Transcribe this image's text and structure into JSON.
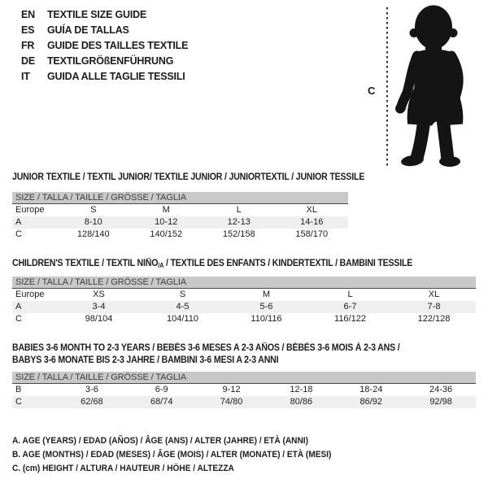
{
  "language_guide": {
    "items": [
      {
        "code": "EN",
        "label": "TEXTILE SIZE GUIDE"
      },
      {
        "code": "ES",
        "label": "GUÍA DE TALLAS"
      },
      {
        "code": "FR",
        "label": "GUIDE DES TAILLES TEXTILE"
      },
      {
        "code": "DE",
        "label": "TEXTILGRÖßENFÜHRUNG"
      },
      {
        "code": "IT",
        "label": "GUIDA ALLE TAGLIE TESSILI"
      }
    ]
  },
  "figure": {
    "icon": "baby-silhouette-icon",
    "measure_label": "C"
  },
  "tables": [
    {
      "title": "JUNIOR TEXTILE / TEXTIL JUNIOR/ TEXTILE JUNIOR / JUNIORTEXTIL / JUNIOR TESSILE",
      "size_header": "SIZE / TALLA / TAILLE / GRÖSSE / TAGLIA",
      "rows": [
        {
          "label": "Europe",
          "values": [
            "S",
            "M",
            "L",
            "XL"
          ],
          "shaded": false
        },
        {
          "label": "A",
          "values": [
            "8-10",
            "10-12",
            "12-13",
            "14-16"
          ],
          "shaded": true
        },
        {
          "label": "C",
          "values": [
            "128/140",
            "140/152",
            "152/158",
            "158/170"
          ],
          "shaded": false
        }
      ]
    },
    {
      "title_parts": {
        "before": "CHILDREN'S TEXTILE / TEXTIL NIÑO",
        "sub": "/A",
        "after": " / TEXTILE DES ENFANTS / KINDERTEXTIL / BAMBINI TESSILE"
      },
      "size_header": "SIZE / TALLA / TAILLE / GRÖSSE / TAGLIA",
      "rows": [
        {
          "label": "Europe",
          "values": [
            "XS",
            "S",
            "M",
            "L",
            "XL"
          ],
          "shaded": false
        },
        {
          "label": "A",
          "values": [
            "3-4",
            "4-5",
            "5-6",
            "6-7",
            "7-8"
          ],
          "shaded": true
        },
        {
          "label": "C",
          "values": [
            "98/104",
            "104/110",
            "110/116",
            "116/122",
            "122/128"
          ],
          "shaded": false
        }
      ]
    },
    {
      "title_line1": "BABIES 3-6 MONTH TO 2-3 YEARS / BEBÉS 3-6 MESES A 2-3 AÑOS / BÉBÉS 3-6 MOIS À 2-3 ANS /",
      "title_line2": "BABYS 3-6 MONATE BIS 2-3 JAHRE / BAMBINI 3-6 MESI A 2-3 ANNI",
      "size_header": "SIZE / TALLA / TAILLE / GRÖSSE / TAGLIA",
      "rows": [
        {
          "label": "B",
          "values": [
            "3-6",
            "6-9",
            "9-12",
            "12-18",
            "18-24",
            "24-36"
          ],
          "shaded": false
        },
        {
          "label": "C",
          "values": [
            "62/68",
            "68/74",
            "74/80",
            "80/86",
            "86/92",
            "92/98"
          ],
          "shaded": true
        }
      ]
    }
  ],
  "footnotes": [
    "A. AGE (YEARS) / EDAD (AÑOS) / ÂGE (ANS) / ALTER (JAHRE) / ETÀ (ANNI)",
    "B. AGE (MONTHS) / EDAD (MESES) / ÂGE (MOIS) / ALTER (MONATE) / ETÀ (MESI)",
    "C. (cm) HEIGHT / ALTURA / HAUTEUR / HÖHE / ALTEZZA"
  ],
  "colors": {
    "size_bar_bg": "#c8c8c8",
    "stripe_bg": "#efefef",
    "text": "#1c1c1c",
    "silhouette": "#141414"
  }
}
